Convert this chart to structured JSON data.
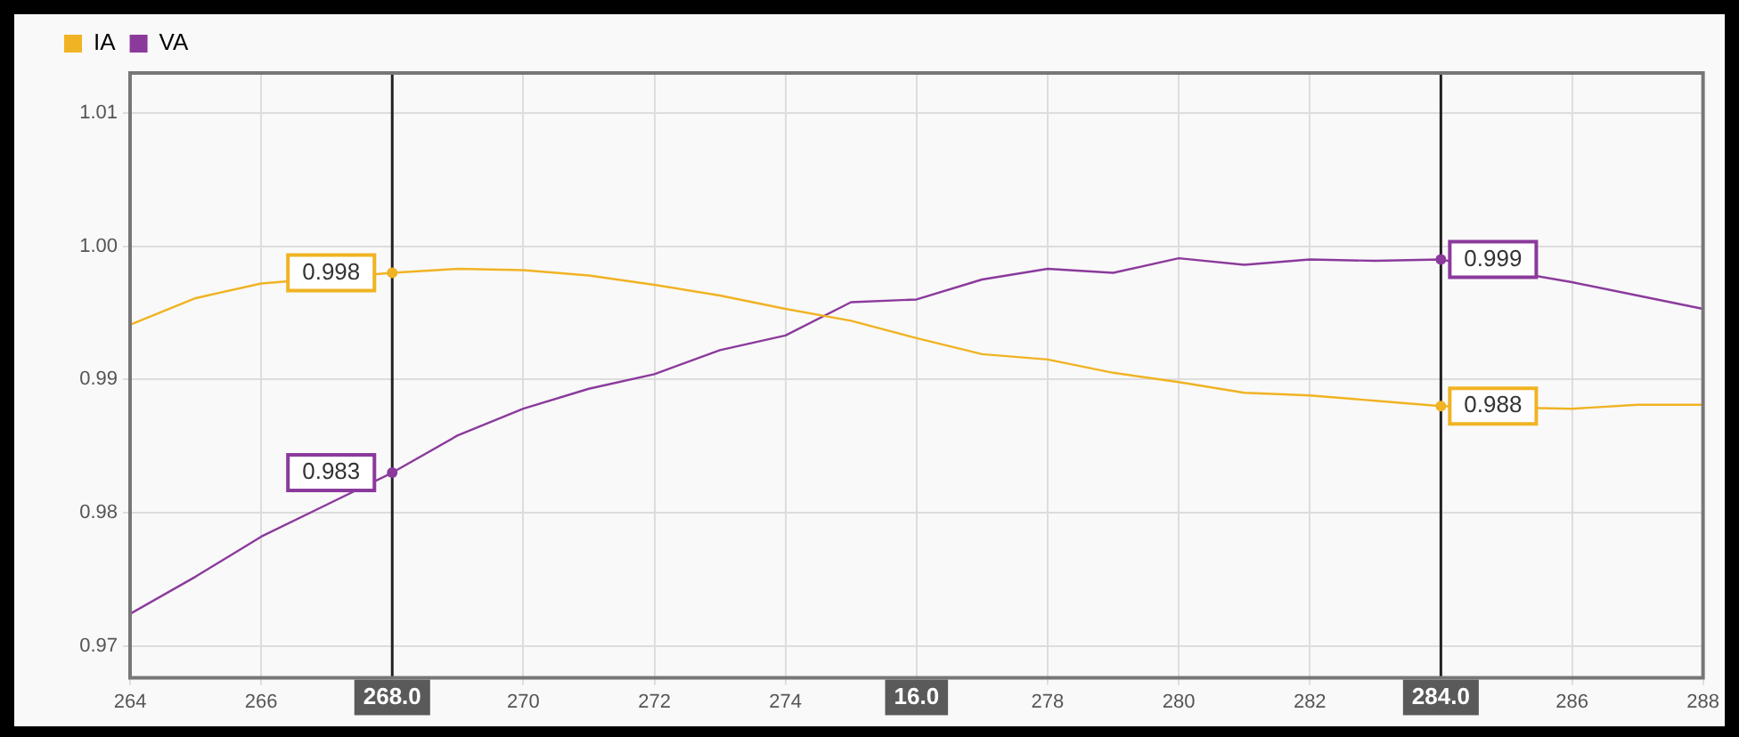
{
  "chart_data": {
    "type": "line",
    "x": [
      264,
      265,
      266,
      267,
      268,
      269,
      270,
      271,
      272,
      273,
      274,
      275,
      276,
      277,
      278,
      279,
      280,
      281,
      282,
      283,
      284,
      285,
      286,
      287,
      288
    ],
    "series": [
      {
        "name": "IA",
        "color": "#f0b323",
        "values": [
          0.9941,
          0.9961,
          0.9972,
          null,
          0.998,
          0.9983,
          0.9982,
          0.9978,
          0.9971,
          0.9963,
          0.9953,
          0.9944,
          0.9931,
          0.9919,
          0.9915,
          0.9905,
          0.9898,
          0.989,
          0.9888,
          0.9884,
          0.988,
          null,
          0.9878,
          0.9881,
          0.9881
        ]
      },
      {
        "name": "VA",
        "color": "#8b3a9c",
        "values": [
          0.9724,
          0.9752,
          0.9782,
          0.9806,
          0.983,
          0.9858,
          0.9878,
          0.9893,
          0.9904,
          0.9922,
          0.9933,
          0.9958,
          0.996,
          0.9975,
          0.9983,
          0.998,
          0.9991,
          0.9986,
          0.999,
          0.9989,
          0.999,
          null,
          0.9973,
          0.9963,
          0.9953
        ]
      }
    ],
    "xlim": [
      264,
      288
    ],
    "xticks": [
      264,
      266,
      270,
      272,
      274,
      {
        "value": 276,
        "label": null
      },
      278,
      280,
      282,
      286,
      288
    ],
    "ylim": [
      0.9676,
      1.013
    ],
    "yticks": [
      0.97,
      0.98,
      0.99,
      {
        "value": 1.0,
        "label": "1.00"
      },
      1.01
    ],
    "grid": true,
    "legend": "top left",
    "marker": "none",
    "line_style": "solid",
    "ref_lines": [
      {
        "axis": "x",
        "value": 268,
        "label": "268.0"
      },
      {
        "axis": "x",
        "value": 284,
        "label": "284.0"
      }
    ],
    "annotations": [
      {
        "text": "16.0",
        "x": 276
      },
      {
        "text": "0.998",
        "x": 268,
        "y": 0.998
      },
      {
        "text": "0.983",
        "x": 268,
        "y": 0.983
      },
      {
        "text": "0.999",
        "x": 284,
        "y": 0.999
      },
      {
        "text": "0.988",
        "x": 284,
        "y": 0.988
      }
    ]
  }
}
